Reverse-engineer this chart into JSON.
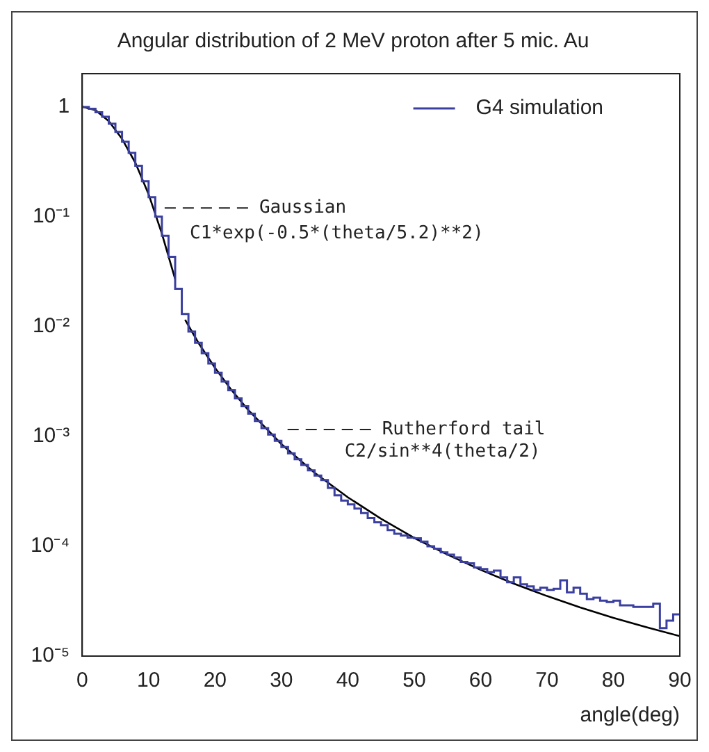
{
  "chart_data": {
    "type": "step",
    "title": "Angular distribution of 2 MeV proton after 5 mic. Au",
    "xlabel": "angle(deg)",
    "series": [
      {
        "name": "G4 simulation",
        "color": "#3a3fa0",
        "x": [
          0.5,
          1.5,
          2.5,
          3.5,
          4.5,
          5.5,
          6.5,
          7.5,
          8.5,
          9.5,
          10.5,
          11.5,
          12.5,
          13.5,
          14.5,
          15.5,
          16.5,
          17.5,
          18.5,
          19.5,
          20.5,
          21.5,
          22.5,
          23.5,
          24.5,
          25.5,
          26.5,
          27.5,
          28.5,
          29.5,
          30.5,
          31.5,
          32.5,
          33.5,
          34.5,
          35.5,
          36.5,
          37.5,
          38.5,
          39.5,
          40.5,
          41.5,
          42.5,
          43.5,
          44.5,
          45.5,
          46.5,
          47.5,
          48.5,
          49.5,
          50.5,
          51.5,
          52.5,
          53.5,
          54.5,
          55.5,
          56.5,
          57.5,
          58.5,
          59.5,
          60.5,
          61.5,
          62.5,
          63.5,
          64.5,
          65.5,
          66.5,
          67.5,
          68.5,
          69.5,
          70.5,
          71.5,
          72.5,
          73.5,
          74.5,
          75.5,
          76.5,
          77.5,
          78.5,
          79.5,
          80.5,
          81.5,
          82.5,
          83.5,
          84.5,
          85.5,
          86.5,
          87.5,
          88.5,
          89.5
        ],
        "values": [
          0.995,
          0.96,
          0.89,
          0.81,
          0.7,
          0.59,
          0.48,
          0.38,
          0.29,
          0.21,
          0.15,
          0.1,
          0.067,
          0.043,
          0.022,
          0.013,
          0.009,
          0.0071,
          0.0057,
          0.0046,
          0.0038,
          0.00315,
          0.00263,
          0.00222,
          0.00188,
          0.00161,
          0.00138,
          0.00119,
          0.00104,
          0.00091,
          0.0008,
          0.0007,
          0.00062,
          0.00055,
          0.00049,
          0.00044,
          0.0004,
          0.00034,
          0.00029,
          0.00026,
          0.00024,
          0.00022,
          0.0002,
          0.00018,
          0.000165,
          0.000155,
          0.00014,
          0.00013,
          0.000125,
          0.00012,
          0.000118,
          0.00011,
          0.0001,
          9.5e-05,
          8.8e-05,
          8.4e-05,
          7.9e-05,
          7.2e-05,
          7e-05,
          6.4e-05,
          6.2e-05,
          5.8e-05,
          6e-05,
          5.2e-05,
          4.7e-05,
          5.2e-05,
          4.5e-05,
          4.3e-05,
          4e-05,
          4.2e-05,
          4e-05,
          4.1e-05,
          4.9e-05,
          3.8e-05,
          4.2e-05,
          3.7e-05,
          3.3e-05,
          3.4e-05,
          3.2e-05,
          3.1e-05,
          3.2e-05,
          2.9e-05,
          2.9e-05,
          2.8e-05,
          2.8e-05,
          2.8e-05,
          3e-05,
          1.8e-05,
          2.1e-05,
          2.4e-05
        ]
      },
      {
        "type": "line",
        "color": "#000000",
        "x": [
          0,
          2,
          4,
          6,
          8,
          10,
          12,
          14
        ],
        "values": [
          1.0,
          0.93,
          0.74,
          0.51,
          0.31,
          0.16,
          0.07,
          0.027
        ]
      },
      {
        "type": "line",
        "color": "#000000",
        "x": [
          15.5,
          17.5,
          20,
          22.5,
          25,
          30,
          35,
          40,
          45,
          50,
          55,
          60,
          65,
          70,
          75,
          80,
          85,
          90
        ],
        "values": [
          0.0115,
          0.0071,
          0.0042,
          0.00263,
          0.00174,
          0.00085,
          0.000466,
          0.000279,
          0.000178,
          0.000119,
          8.4e-05,
          6.1e-05,
          4.57e-05,
          3.52e-05,
          2.77e-05,
          2.23e-05,
          1.83e-05,
          1.52e-05
        ]
      }
    ],
    "xlim": [
      0,
      90
    ],
    "xticks": [
      0,
      10,
      20,
      30,
      40,
      50,
      60,
      70,
      80,
      90
    ],
    "ylim": [
      1e-05,
      2
    ],
    "log": true,
    "yticks": [
      {
        "value": 1e-05,
        "label": "10⁻⁵"
      },
      {
        "value": 0.0001,
        "label": "10⁻⁴"
      },
      {
        "value": 0.001,
        "label": "10⁻³"
      },
      {
        "value": 0.01,
        "label": "10⁻²"
      },
      {
        "value": 0.1,
        "label": "10⁻¹"
      },
      {
        "value": 1,
        "label": "1"
      }
    ],
    "legend": "top right",
    "grid": false,
    "annotations": [
      {
        "text": "Gaussian",
        "x": 12,
        "y": 0.12
      },
      "C1*exp(-0.5*(theta/5.2)**2)",
      "Rutherford tail",
      "C2/sin**4(theta/2)"
    ]
  }
}
